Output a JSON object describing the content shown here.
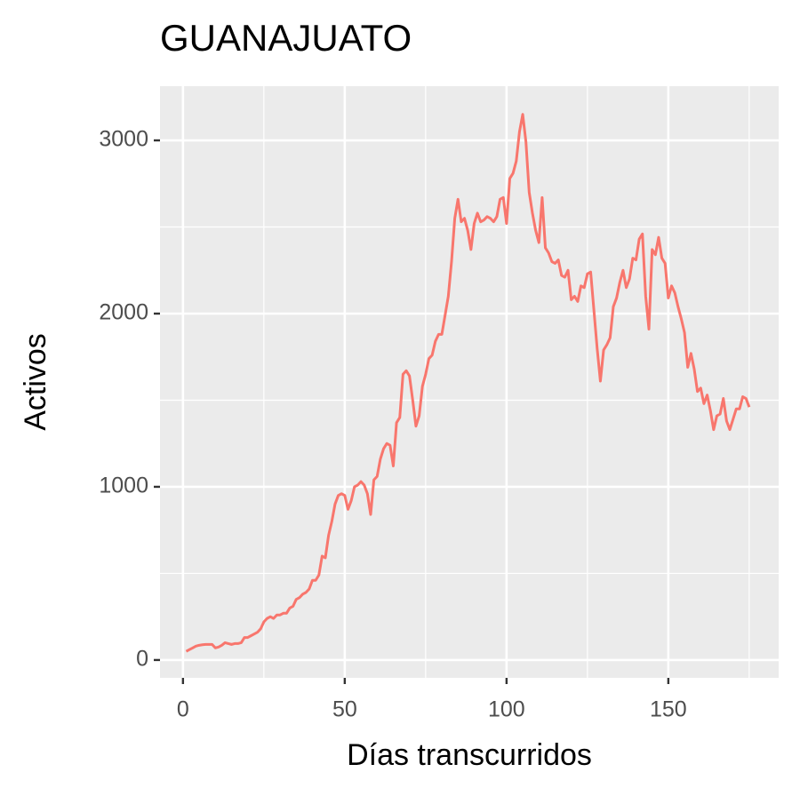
{
  "chart_data": {
    "type": "line",
    "title": "GUANAJUATO",
    "xlabel": "Días transcurridos",
    "ylabel": "Activos",
    "x": [
      1,
      2,
      3,
      4,
      5,
      6,
      7,
      8,
      9,
      10,
      11,
      12,
      13,
      14,
      15,
      16,
      17,
      18,
      19,
      20,
      21,
      22,
      23,
      24,
      25,
      26,
      27,
      28,
      29,
      30,
      31,
      32,
      33,
      34,
      35,
      36,
      37,
      38,
      39,
      40,
      41,
      42,
      43,
      44,
      45,
      46,
      47,
      48,
      49,
      50,
      51,
      52,
      53,
      54,
      55,
      56,
      57,
      58,
      59,
      60,
      61,
      62,
      63,
      64,
      65,
      66,
      67,
      68,
      69,
      70,
      71,
      72,
      73,
      74,
      75,
      76,
      77,
      78,
      79,
      80,
      81,
      82,
      83,
      84,
      85,
      86,
      87,
      88,
      89,
      90,
      91,
      92,
      93,
      94,
      95,
      96,
      97,
      98,
      99,
      100,
      101,
      102,
      103,
      104,
      105,
      106,
      107,
      108,
      109,
      110,
      111,
      112,
      113,
      114,
      115,
      116,
      117,
      118,
      119,
      120,
      121,
      122,
      123,
      124,
      125,
      126,
      127,
      128,
      129,
      130,
      131,
      132,
      133,
      134,
      135,
      136,
      137,
      138,
      139,
      140,
      141,
      142,
      143,
      144,
      145,
      146,
      147,
      148,
      149,
      150,
      151,
      152,
      153,
      154,
      155,
      156,
      157,
      158,
      159,
      160,
      161,
      162,
      163,
      164,
      165,
      166,
      167,
      168,
      169,
      170,
      171,
      172,
      173,
      174,
      175
    ],
    "series": [
      {
        "color": "#F8766D",
        "values": [
          50,
          60,
          70,
          80,
          85,
          88,
          90,
          90,
          90,
          70,
          75,
          85,
          100,
          95,
          90,
          95,
          95,
          100,
          130,
          130,
          140,
          150,
          160,
          180,
          220,
          240,
          250,
          240,
          260,
          260,
          270,
          270,
          300,
          310,
          350,
          360,
          380,
          390,
          410,
          460,
          460,
          490,
          600,
          590,
          720,
          800,
          900,
          950,
          960,
          950,
          870,
          920,
          1000,
          1010,
          1030,
          1010,
          960,
          840,
          1040,
          1060,
          1160,
          1220,
          1250,
          1240,
          1120,
          1370,
          1400,
          1650,
          1670,
          1640,
          1500,
          1350,
          1410,
          1580,
          1650,
          1740,
          1760,
          1840,
          1880,
          1880,
          1990,
          2100,
          2300,
          2550,
          2660,
          2530,
          2550,
          2480,
          2370,
          2520,
          2580,
          2530,
          2540,
          2560,
          2550,
          2530,
          2560,
          2660,
          2670,
          2520,
          2780,
          2810,
          2880,
          3050,
          3150,
          2990,
          2700,
          2580,
          2480,
          2410,
          2670,
          2380,
          2350,
          2300,
          2290,
          2310,
          2220,
          2210,
          2250,
          2080,
          2100,
          2070,
          2160,
          2150,
          2230,
          2240,
          2020,
          1800,
          1610,
          1790,
          1820,
          1860,
          2040,
          2090,
          2180,
          2250,
          2150,
          2200,
          2320,
          2310,
          2430,
          2460,
          2100,
          1910,
          2370,
          2340,
          2440,
          2320,
          2290,
          2090,
          2160,
          2120,
          2040,
          1970,
          1890,
          1690,
          1770,
          1680,
          1550,
          1570,
          1480,
          1530,
          1440,
          1330,
          1410,
          1420,
          1510,
          1380,
          1330,
          1390,
          1450,
          1450,
          1520,
          1510,
          1460
        ]
      }
    ],
    "xlim": [
      -7.1,
      184.1
    ],
    "ylim": [
      -103,
      3313
    ],
    "xticks": [
      0,
      50,
      100,
      150
    ],
    "yticks": [
      0,
      1000,
      2000,
      3000
    ],
    "xminor": [
      25,
      75,
      125,
      175
    ],
    "yminor": [
      500,
      1500,
      2500
    ],
    "grid": true,
    "panel_color": "#EBEBEB"
  }
}
